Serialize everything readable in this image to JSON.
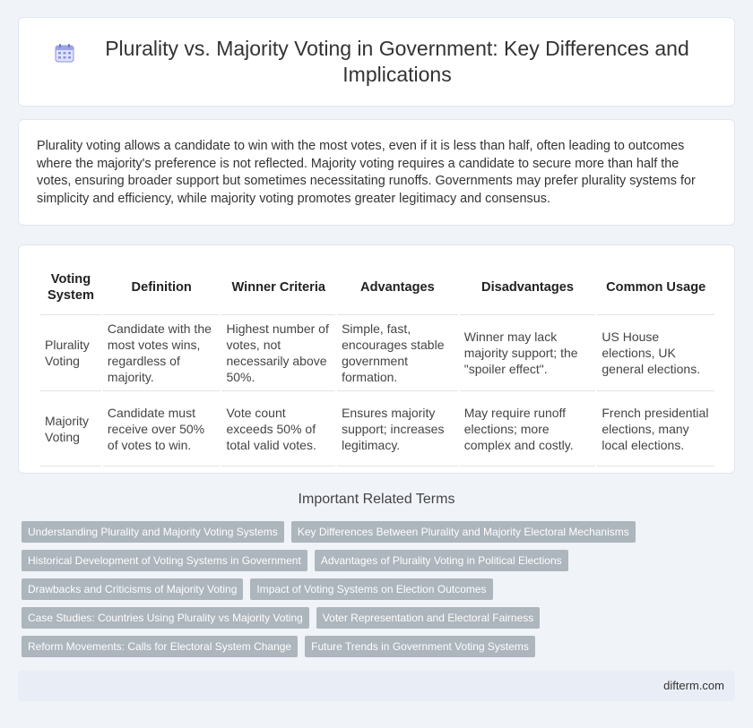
{
  "header": {
    "title": "Plurality vs. Majority Voting in Government: Key Differences and Implications",
    "icon": "calendar-icon"
  },
  "intro": "Plurality voting allows a candidate to win with the most votes, even if it is less than half, often leading to outcomes where the majority's preference is not reflected. Majority voting requires a candidate to secure more than half the votes, ensuring broader support but sometimes necessitating runoffs. Governments may prefer plurality systems for simplicity and efficiency, while majority voting promotes greater legitimacy and consensus.",
  "table": {
    "headers": [
      "Voting System",
      "Definition",
      "Winner Criteria",
      "Advantages",
      "Disadvantages",
      "Common Usage"
    ],
    "rows": [
      [
        "Plurality Voting",
        "Candidate with the most votes wins, regardless of majority.",
        "Highest number of votes, not necessarily above 50%.",
        "Simple, fast, encourages stable government formation.",
        "Winner may lack majority support; the \"spoiler effect\".",
        "US House elections, UK general elections."
      ],
      [
        "Majority Voting",
        "Candidate must receive over 50% of votes to win.",
        "Vote count exceeds 50% of total valid votes.",
        "Ensures majority support; increases legitimacy.",
        "May require runoff elections; more complex and costly.",
        "French presidential elections, many local elections."
      ]
    ]
  },
  "related": {
    "title": "Important Related Terms",
    "rows": [
      [
        "Understanding Plurality and Majority Voting Systems",
        "Key Differences Between Plurality and Majority Electoral Mechanisms"
      ],
      [
        "Historical Development of Voting Systems in Government",
        "Advantages of Plurality Voting in Political Elections"
      ],
      [
        "Drawbacks and Criticisms of Majority Voting",
        "Impact of Voting Systems on Election Outcomes"
      ],
      [
        "Case Studies: Countries Using Plurality vs Majority Voting",
        "Voter Representation and Electoral Fairness"
      ],
      [
        "Reform Movements: Calls for Electoral System Change",
        "Future Trends in Government Voting Systems"
      ]
    ]
  },
  "footer": {
    "site": "difterm.com"
  }
}
